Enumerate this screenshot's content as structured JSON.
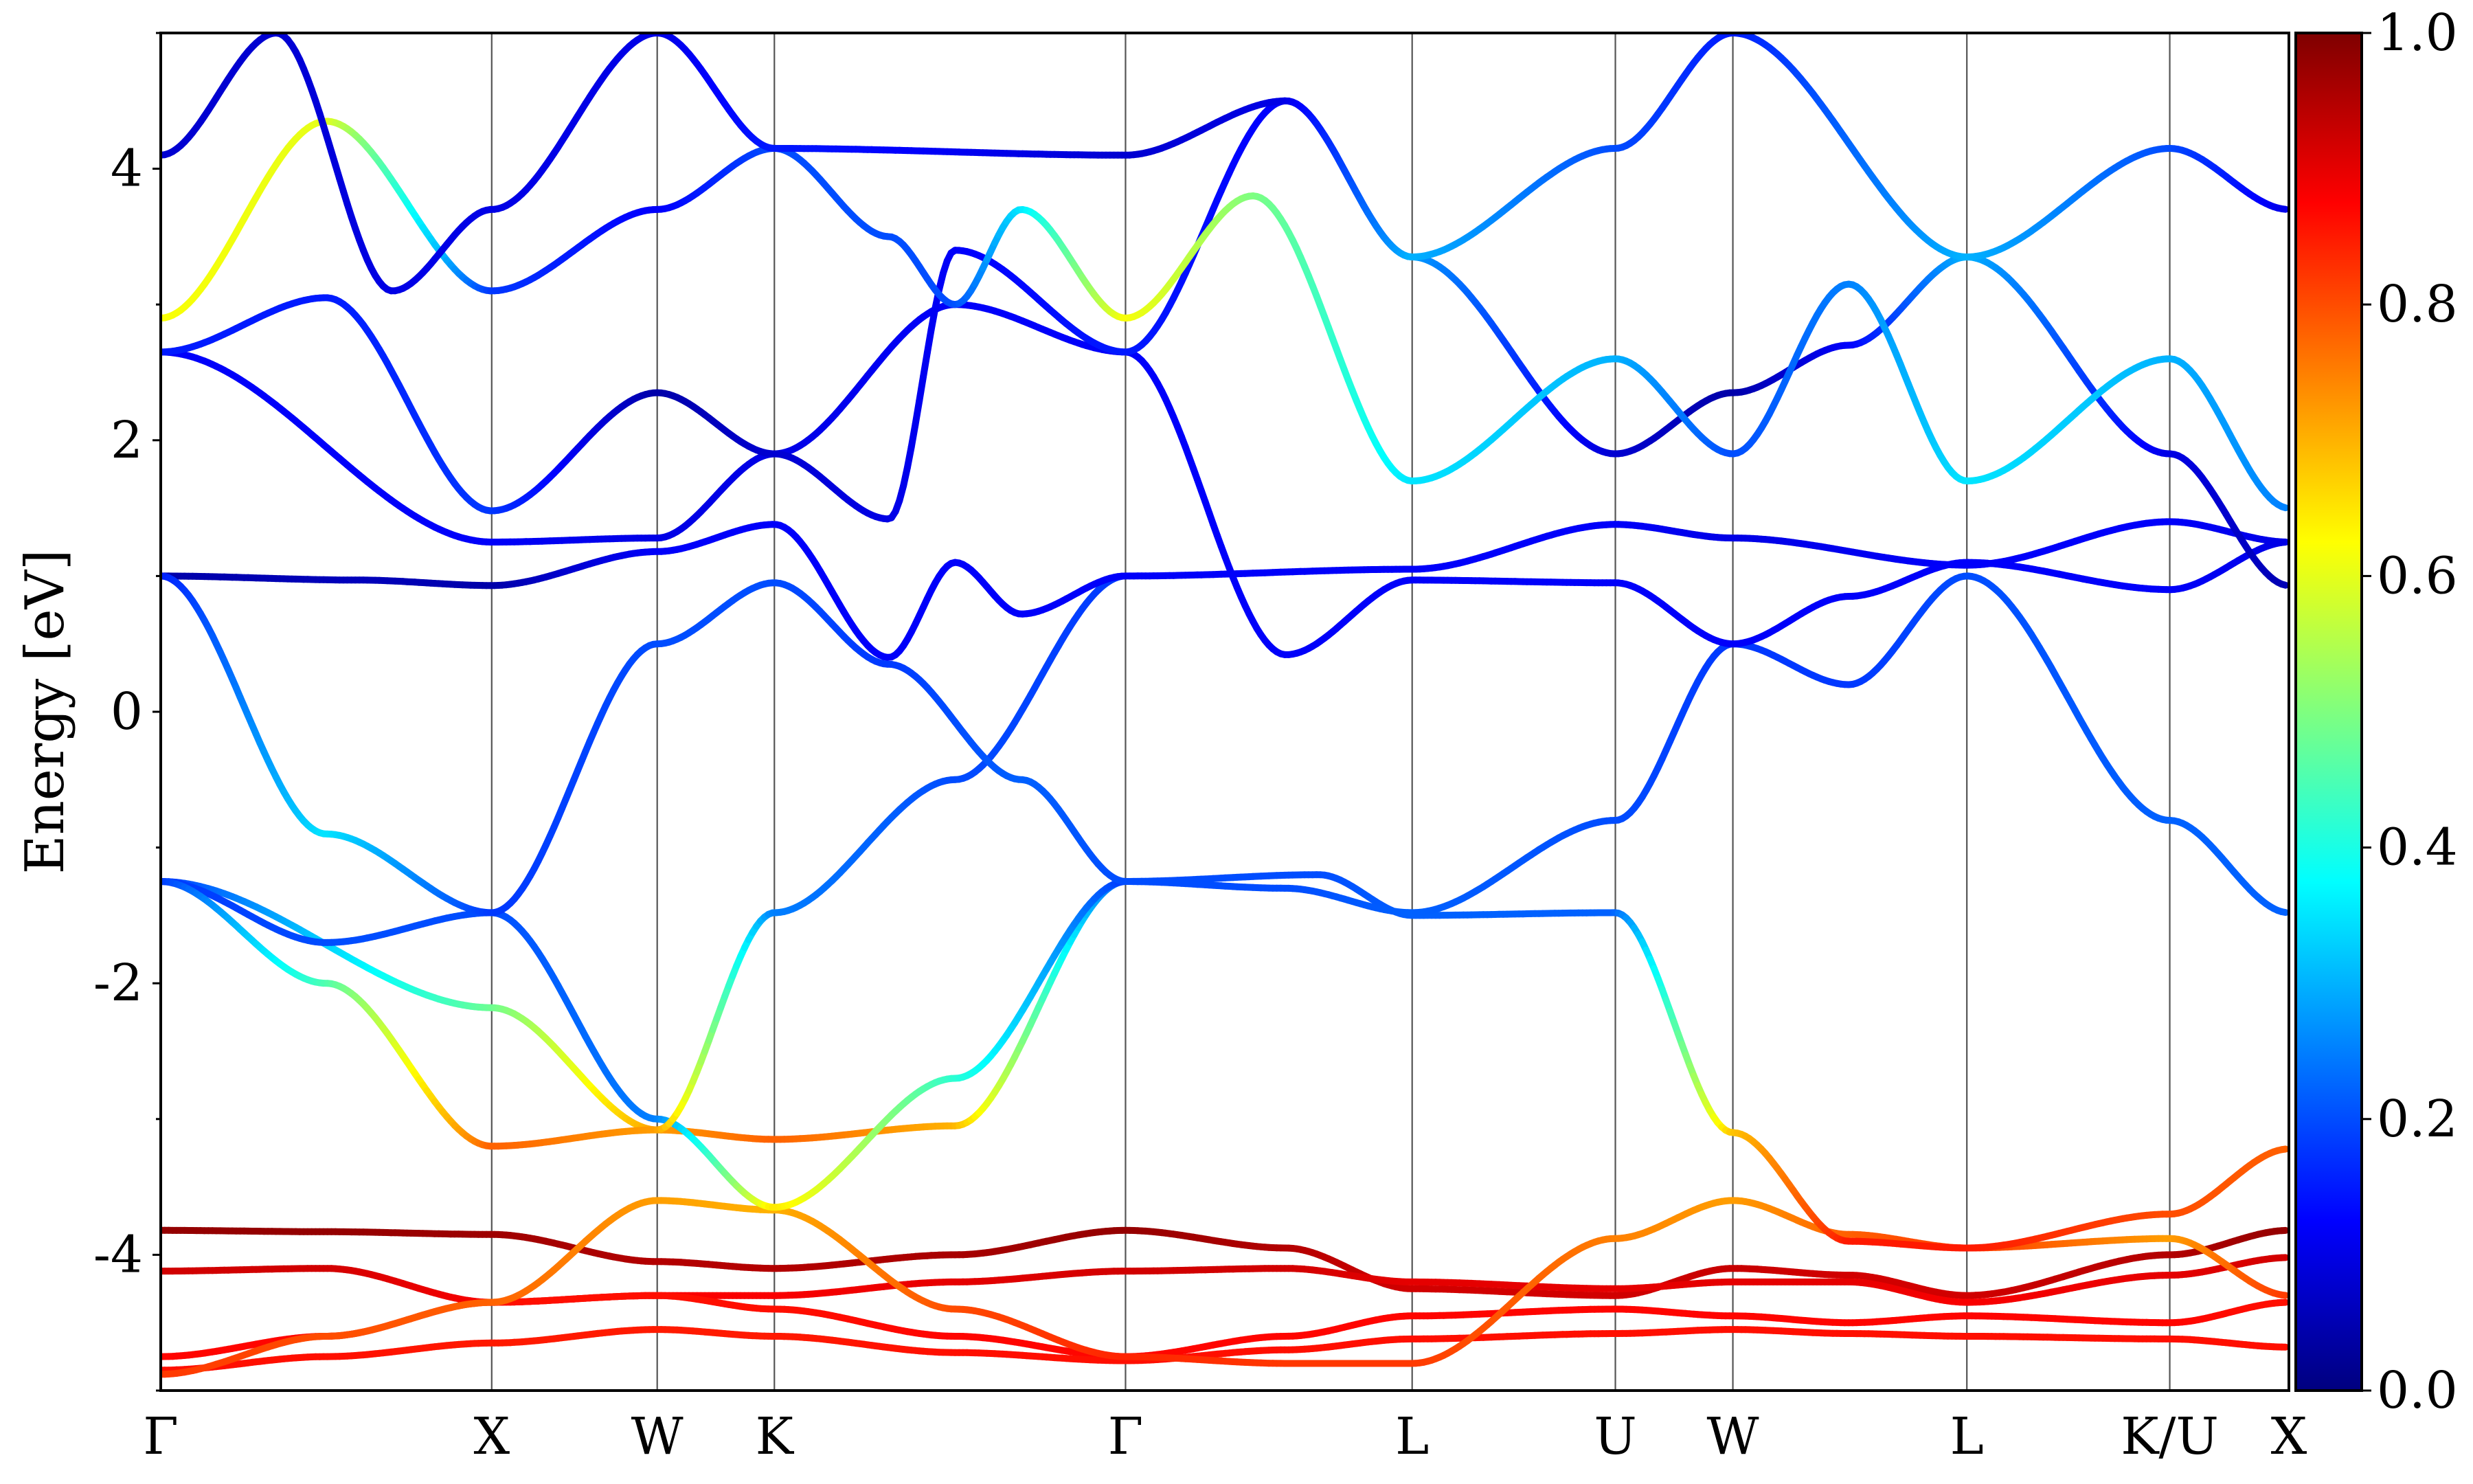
{
  "chart_data": {
    "type": "line",
    "title": "",
    "ylabel": "Energy [eV]",
    "xlabel": "",
    "ylim": [
      -5,
      5
    ],
    "yticks": [
      "-4",
      "-2",
      "0",
      "2",
      "4"
    ],
    "kpath": [
      "Γ",
      "X",
      "W",
      "K",
      "Γ",
      "L",
      "U",
      "W",
      "L",
      "K/U",
      "X"
    ],
    "kpath_positions": [
      0,
      1,
      1.5,
      1.854,
      2.915,
      3.781,
      4.395,
      4.75,
      5.457,
      6.07,
      6.43
    ],
    "x_range": [
      0,
      6.43
    ],
    "colormap": "jet",
    "colorbar": {
      "ticks": [
        "0.0",
        "0.2",
        "0.4",
        "0.6",
        "0.8",
        "1.0"
      ],
      "range": [
        0,
        1
      ],
      "colors": [
        "#00007f",
        "#0000ff",
        "#007fff",
        "#00ffff",
        "#7fff7f",
        "#ffff00",
        "#ff7f00",
        "#ff0000",
        "#7f0000"
      ]
    },
    "series": [
      {
        "x": [
          0,
          0.5,
          1,
          1.5,
          1.854,
          2.4,
          2.915,
          3.4,
          3.781,
          4.395,
          4.75,
          5.1,
          5.457,
          6.07,
          6.43
        ],
        "y": [
          -3.82,
          -3.83,
          -3.85,
          -4.05,
          -4.1,
          -4.0,
          -3.82,
          -3.95,
          -4.25,
          -4.3,
          -4.1,
          -4.15,
          -4.3,
          -4.0,
          -3.82
        ],
        "weight": [
          0.98,
          0.98,
          0.97,
          0.95,
          0.95,
          0.96,
          0.98,
          0.95,
          0.92,
          0.92,
          0.93,
          0.92,
          0.92,
          0.95,
          0.98
        ]
      },
      {
        "x": [
          0,
          0.5,
          1,
          1.5,
          1.854,
          2.4,
          2.915,
          3.4,
          3.781,
          4.395,
          4.75,
          5.1,
          5.457,
          6.07,
          6.43
        ],
        "y": [
          -4.12,
          -4.1,
          -4.35,
          -4.3,
          -4.3,
          -4.2,
          -4.12,
          -4.1,
          -4.2,
          -4.25,
          -4.2,
          -4.2,
          -4.35,
          -4.15,
          -4.02
        ],
        "weight": [
          0.92,
          0.92,
          0.88,
          0.88,
          0.88,
          0.9,
          0.92,
          0.92,
          0.9,
          0.9,
          0.9,
          0.9,
          0.88,
          0.9,
          0.92
        ]
      },
      {
        "x": [
          0,
          0.5,
          1,
          1.5,
          1.854,
          2.4,
          2.915,
          3.4,
          3.781,
          4.395,
          4.75,
          5.1,
          5.457,
          6.07,
          6.43
        ],
        "y": [
          -4.75,
          -4.6,
          -4.35,
          -4.3,
          -4.4,
          -4.6,
          -4.75,
          -4.6,
          -4.45,
          -4.4,
          -4.45,
          -4.5,
          -4.45,
          -4.5,
          -4.35
        ],
        "weight": [
          0.87,
          0.87,
          0.86,
          0.86,
          0.86,
          0.87,
          0.87,
          0.87,
          0.87,
          0.87,
          0.87,
          0.87,
          0.87,
          0.87,
          0.86
        ]
      },
      {
        "x": [
          0,
          0.5,
          1,
          1.5,
          1.854,
          2.4,
          2.915,
          3.4,
          3.781,
          4.395,
          4.75,
          5.1,
          5.457,
          6.07,
          6.43
        ],
        "y": [
          -4.85,
          -4.75,
          -4.65,
          -4.55,
          -4.6,
          -4.72,
          -4.78,
          -4.7,
          -4.62,
          -4.58,
          -4.55,
          -4.58,
          -4.6,
          -4.62,
          -4.68
        ],
        "weight": [
          0.86,
          0.86,
          0.85,
          0.85,
          0.85,
          0.86,
          0.86,
          0.86,
          0.86,
          0.86,
          0.86,
          0.86,
          0.86,
          0.86,
          0.86
        ]
      },
      {
        "x": [
          0,
          0.5,
          1,
          1.5,
          1.854,
          2.4,
          2.915,
          3.4,
          3.781,
          4.395,
          4.75,
          5.1,
          5.457,
          6.07,
          6.43
        ],
        "y": [
          -4.88,
          -4.6,
          -4.35,
          -3.6,
          -3.67,
          -4.4,
          -4.75,
          -4.8,
          -4.8,
          -3.88,
          -3.6,
          -3.85,
          -3.95,
          -3.88,
          -4.3
        ],
        "weight": [
          0.82,
          0.8,
          0.78,
          0.72,
          0.7,
          0.8,
          0.84,
          0.82,
          0.82,
          0.75,
          0.72,
          0.78,
          0.82,
          0.72,
          0.82
        ]
      },
      {
        "x": [
          0,
          1,
          1.5,
          1.854,
          2.4,
          2.915,
          3.5,
          3.781,
          4.395,
          4.75,
          5.1,
          5.457,
          6.07,
          6.43
        ],
        "y": [
          -1.25,
          -2.18,
          -3.08,
          -3.15,
          -3.05,
          -1.25,
          -1.2,
          -1.5,
          -1.48,
          -3.1,
          -3.9,
          -3.95,
          -3.7,
          -3.22
        ],
        "weight": [
          0.18,
          0.48,
          0.72,
          0.78,
          0.7,
          0.2,
          0.2,
          0.22,
          0.22,
          0.68,
          0.85,
          0.85,
          0.8,
          0.78
        ]
      },
      {
        "x": [
          0,
          0.5,
          1,
          1.5,
          1.854,
          2.4,
          2.915
        ],
        "y": [
          -1.25,
          -1.7,
          -1.48,
          -3.0,
          -3.65,
          -2.7,
          -1.25
        ],
        "weight": [
          0.18,
          0.2,
          0.2,
          0.25,
          0.65,
          0.42,
          0.18
        ]
      },
      {
        "x": [
          0,
          0.5,
          1,
          1.5,
          1.854,
          2.4,
          2.915
        ],
        "y": [
          -1.25,
          -2.0,
          -3.2,
          -3.08,
          -1.48,
          -0.5,
          1.0
        ],
        "weight": [
          0.18,
          0.45,
          0.78,
          0.72,
          0.25,
          0.2,
          0.18
        ]
      },
      {
        "x": [
          0,
          0.6,
          1,
          1.5,
          1.854,
          2.2,
          2.4,
          2.6,
          2.915,
          3.781,
          4.395,
          4.75,
          5.457,
          6.07,
          6.43
        ],
        "y": [
          1.0,
          0.97,
          0.93,
          1.18,
          1.38,
          0.4,
          1.1,
          0.72,
          1.0,
          1.05,
          1.38,
          1.28,
          1.08,
          1.4,
          1.25
        ],
        "weight": [
          0.04,
          0.06,
          0.04,
          0.12,
          0.12,
          0.12,
          0.12,
          0.12,
          0.12,
          0.12,
          0.12,
          0.1,
          0.12,
          0.12,
          0.1
        ]
      },
      {
        "x": [
          0,
          0.5,
          1,
          1.5,
          1.854,
          2.2,
          2.6,
          2.915,
          3.4,
          3.781,
          4.395,
          4.75,
          5.1,
          5.457,
          6.07,
          6.43
        ],
        "y": [
          1.0,
          -0.9,
          -1.48,
          0.5,
          0.95,
          0.35,
          -0.5,
          -1.25,
          -1.3,
          -1.48,
          -0.8,
          0.5,
          0.2,
          1.0,
          -0.8,
          -1.48
        ],
        "weight": [
          0.15,
          0.35,
          0.18,
          0.2,
          0.2,
          0.18,
          0.22,
          0.2,
          0.2,
          0.22,
          0.2,
          0.18,
          0.18,
          0.2,
          0.22,
          0.22
        ]
      },
      {
        "x": [
          0,
          1,
          1.5,
          1.854,
          2.4,
          2.915,
          3.4,
          3.781,
          4.395,
          4.75,
          5.1,
          5.457,
          6.07,
          6.43
        ],
        "y": [
          2.65,
          1.25,
          1.28,
          1.9,
          3.0,
          2.65,
          0.42,
          0.97,
          0.95,
          0.5,
          0.85,
          1.1,
          0.9,
          1.25
        ],
        "weight": [
          0.12,
          0.12,
          0.1,
          0.1,
          0.12,
          0.12,
          0.12,
          0.12,
          0.12,
          0.12,
          0.12,
          0.12,
          0.12,
          0.1
        ]
      },
      {
        "x": [
          0,
          0.5,
          1,
          1.5,
          1.854,
          2.2,
          2.4,
          2.915,
          3.4,
          3.781,
          4.395,
          4.75,
          5.1,
          5.457,
          6.07,
          6.43
        ],
        "y": [
          2.65,
          3.05,
          1.48,
          2.35,
          1.9,
          1.42,
          3.4,
          2.65,
          4.5,
          3.35,
          1.9,
          2.35,
          2.7,
          3.35,
          1.9,
          0.93
        ],
        "weight": [
          0.15,
          0.15,
          0.18,
          0.04,
          0.08,
          0.1,
          0.12,
          0.15,
          0.12,
          0.28,
          0.08,
          0.04,
          0.12,
          0.3,
          0.1,
          0.05
        ]
      },
      {
        "x": [
          0,
          0.5,
          1,
          1.5,
          1.854,
          2.2,
          2.4,
          2.6,
          2.915,
          3.3,
          3.781,
          4.395,
          4.75,
          5.1,
          5.457,
          6.07,
          6.43
        ],
        "y": [
          2.9,
          4.35,
          3.1,
          3.7,
          4.15,
          3.5,
          3.0,
          3.7,
          2.9,
          3.8,
          1.7,
          2.6,
          1.9,
          3.15,
          1.7,
          2.6,
          1.5
        ],
        "weight": [
          0.62,
          0.6,
          0.18,
          0.12,
          0.2,
          0.2,
          0.2,
          0.35,
          0.62,
          0.5,
          0.35,
          0.3,
          0.2,
          0.25,
          0.35,
          0.3,
          0.25
        ]
      },
      {
        "x": [
          0,
          0.35,
          0.7,
          1,
          1.5,
          1.854,
          2.915,
          3.4,
          3.781,
          4.395,
          4.75,
          5.457,
          6.07,
          6.43
        ],
        "y": [
          4.1,
          5.0,
          3.1,
          3.7,
          5.0,
          4.15,
          4.1,
          4.5,
          3.35,
          4.15,
          5.0,
          3.35,
          4.15,
          3.7
        ],
        "weight": [
          0.08,
          0.08,
          0.1,
          0.1,
          0.1,
          0.15,
          0.08,
          0.1,
          0.3,
          0.2,
          0.15,
          0.3,
          0.2,
          0.1
        ]
      }
    ]
  }
}
